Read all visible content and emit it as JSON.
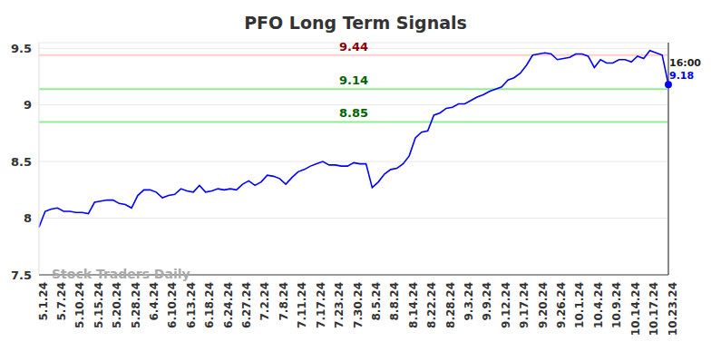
{
  "chart_data": {
    "type": "line",
    "title": "PFO Long Term Signals",
    "categories": [
      "5.1.24",
      null,
      null,
      "5.7.24",
      null,
      null,
      "5.10.24",
      null,
      null,
      "5.15.24",
      null,
      null,
      "5.20.24",
      null,
      null,
      "5.28.24",
      null,
      null,
      "6.4.24",
      null,
      null,
      "6.10.24",
      null,
      null,
      "6.13.24",
      null,
      null,
      "6.18.24",
      null,
      null,
      "6.24.24",
      null,
      null,
      "6.27.24",
      null,
      null,
      "7.2.24",
      null,
      null,
      "7.8.24",
      null,
      null,
      "7.11.24",
      null,
      null,
      "7.17.24",
      null,
      null,
      "7.23.24",
      null,
      null,
      "7.30.24",
      null,
      null,
      "8.5.24",
      null,
      null,
      "8.8.24",
      null,
      null,
      "8.14.24",
      null,
      null,
      "8.22.24",
      null,
      null,
      "8.28.24",
      null,
      null,
      "9.3.24",
      null,
      null,
      "9.9.24",
      null,
      null,
      "9.12.24",
      null,
      null,
      "9.17.24",
      null,
      null,
      "9.20.24",
      null,
      null,
      "9.26.24",
      null,
      null,
      "10.1.24",
      null,
      null,
      "10.4.24",
      null,
      null,
      "10.9.24",
      null,
      null,
      "10.14.24",
      null,
      null,
      "10.17.24",
      null,
      null,
      "10.23.24"
    ],
    "values": [
      7.92,
      8.06,
      8.08,
      8.09,
      8.06,
      8.06,
      8.05,
      8.05,
      8.04,
      8.14,
      8.15,
      8.16,
      8.16,
      8.13,
      8.12,
      8.09,
      8.2,
      8.25,
      8.25,
      8.23,
      8.18,
      8.2,
      8.21,
      8.26,
      8.24,
      8.23,
      8.29,
      8.23,
      8.24,
      8.26,
      8.25,
      8.26,
      8.25,
      8.3,
      8.33,
      8.29,
      8.32,
      8.38,
      8.37,
      8.35,
      8.3,
      8.36,
      8.41,
      8.43,
      8.46,
      8.48,
      8.5,
      8.47,
      8.47,
      8.46,
      8.46,
      8.49,
      8.48,
      8.48,
      8.27,
      8.32,
      8.39,
      8.43,
      8.44,
      8.48,
      8.55,
      8.71,
      8.76,
      8.77,
      8.91,
      8.93,
      8.97,
      8.98,
      9.01,
      9.01,
      9.04,
      9.07,
      9.09,
      9.12,
      9.14,
      9.16,
      9.22,
      9.24,
      9.28,
      9.35,
      9.44,
      9.45,
      9.46,
      9.45,
      9.4,
      9.41,
      9.42,
      9.45,
      9.45,
      9.43,
      9.33,
      9.4,
      9.37,
      9.37,
      9.4,
      9.4,
      9.38,
      9.43,
      9.41,
      9.48,
      9.46,
      9.44,
      9.18
    ],
    "color": "#0000ff",
    "ylim": [
      7.5,
      9.55
    ],
    "yticks": [
      7.5,
      8,
      8.5,
      9,
      9.5
    ],
    "grid": true,
    "reference_lines": [
      {
        "value": 9.44,
        "color": "#ffcccc",
        "label_color": "#8b0000"
      },
      {
        "value": 9.14,
        "color": "#90ee90",
        "label_color": "#006400"
      },
      {
        "value": 8.85,
        "color": "#90ee90",
        "label_color": "#006400"
      }
    ],
    "last_point_label": "16:00",
    "watermark": "Stock Traders Daily"
  }
}
